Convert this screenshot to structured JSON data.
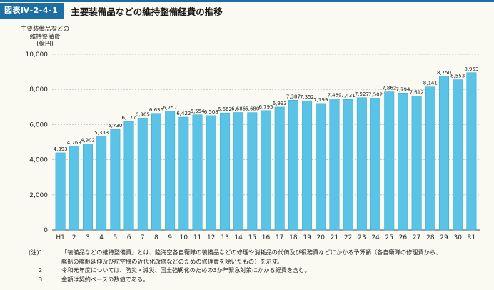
{
  "figure_label": "図表Ⅳ-2-4-1",
  "figure_title": "主要装備品などの維持整備経費の推移",
  "y_axis_label_lines": [
    "主要装備品などの",
    "維持整備費",
    "(億円)"
  ],
  "colors": {
    "bar": "#5bc3e6",
    "bar_edge": "#2aa7d2",
    "header": "#1d6fa3"
  },
  "chart_data": {
    "type": "bar",
    "categories": [
      "H1",
      "2",
      "3",
      "4",
      "5",
      "6",
      "7",
      "8",
      "9",
      "10",
      "11",
      "12",
      "13",
      "14",
      "15",
      "16",
      "17",
      "18",
      "19",
      "20",
      "21",
      "22",
      "23",
      "24",
      "25",
      "26",
      "27",
      "28",
      "29",
      "30",
      "R1"
    ],
    "values": [
      4393,
      4763,
      4902,
      5333,
      5730,
      6177,
      6365,
      6636,
      6757,
      6422,
      6554,
      6508,
      6662,
      6686,
      6680,
      6795,
      6993,
      7387,
      7352,
      7199,
      7459,
      7431,
      7527,
      7502,
      7862,
      7794,
      7612,
      8141,
      8750,
      8553,
      8953
    ],
    "value_labels": [
      "4,393",
      "4,763",
      "4,902",
      "5,333",
      "5,730",
      "6,177",
      "6,365",
      "6,636",
      "6,757",
      "6,422",
      "6,554",
      "6,508",
      "6,662",
      "6,686",
      "6,680",
      "6,795",
      "6,993",
      "7,387",
      "7,352",
      "7,199",
      "7,459",
      "7,431",
      "7,527",
      "7,502",
      "7,862",
      "7,794",
      "7,612",
      "8,141",
      "8,750",
      "8,553",
      "8,953"
    ],
    "ylim": [
      0,
      10000
    ],
    "yticks": [
      0,
      2000,
      4000,
      6000,
      8000,
      10000
    ],
    "ytick_labels": [
      "0",
      "2,000",
      "4,000",
      "6,000",
      "8,000",
      "10,000"
    ],
    "grid": true
  },
  "notes": [
    {
      "mark": "(注)1",
      "text": "「装備品などの維持整備費」とは、陸海空各自衛隊の装備品などの修理や消耗品の代価及び役務費などにかかる予算額（各自衛隊の修理費から、"
    },
    {
      "mark": "",
      "text": "艦船の艦齢延伸及び航空機の近代化改修などのための修理費を除いたもの）を示す。"
    },
    {
      "mark": "2",
      "text": "令和元年度については、防災・減災、国土強靱化のための3か年緊急対策にかかる経費を含む。"
    },
    {
      "mark": "3",
      "text": "金額は契約ベースの数値である。"
    }
  ]
}
